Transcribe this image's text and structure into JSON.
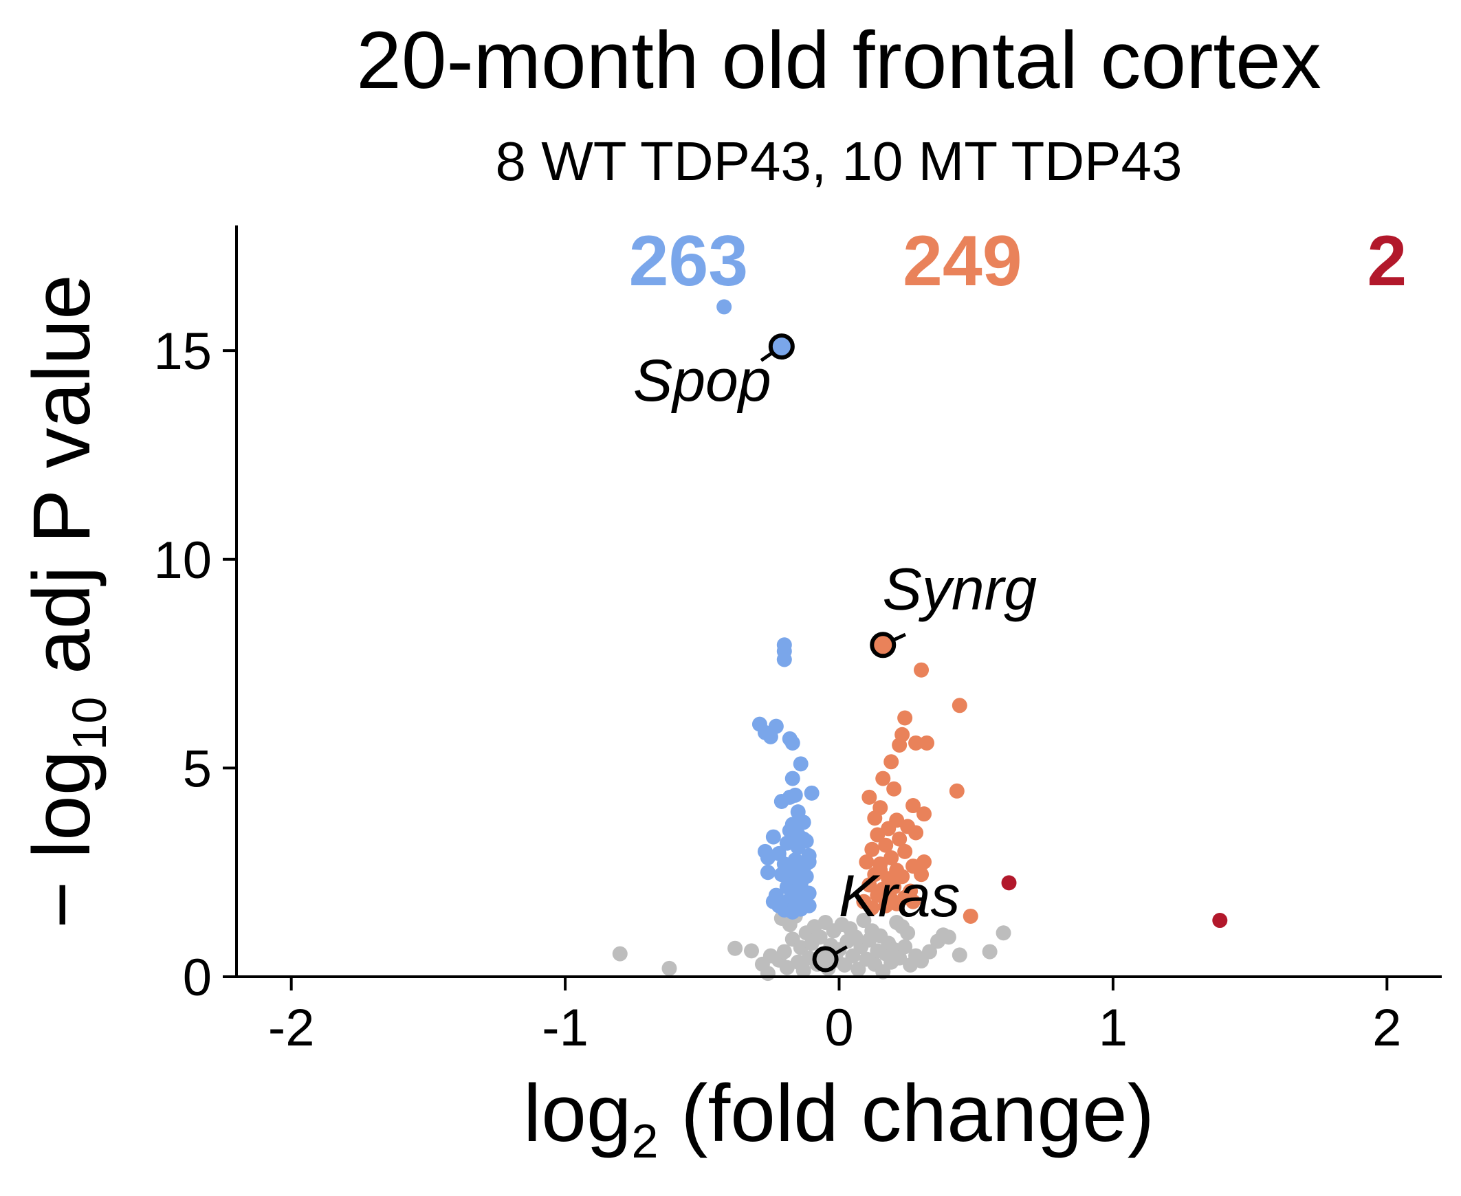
{
  "chart_data": {
    "type": "scatter",
    "title": "20-month old frontal cortex",
    "subtitle": "8 WT TDP43, 10 MT TDP43",
    "xlabel_main": "log",
    "xlabel_sub": "2",
    "xlabel_rest": " (fold change)",
    "ylabel_prefix": "− log",
    "ylabel_sub": "10",
    "ylabel_rest": " adj P value",
    "xlim": [
      -2.2,
      2.2
    ],
    "ylim": [
      0,
      18
    ],
    "x_ticks": [
      -2,
      -1,
      0,
      1,
      2
    ],
    "x_tick_labels": [
      "-2",
      "-1",
      "0",
      "1",
      "2"
    ],
    "y_ticks": [
      0,
      5,
      10,
      15
    ],
    "y_tick_labels": [
      "0",
      "5",
      "10",
      "15"
    ],
    "grid": false,
    "counts": [
      {
        "label": "263",
        "x": -0.55,
        "color": "#7aa6ea"
      },
      {
        "label": "249",
        "x": 0.45,
        "color": "#e9825a"
      },
      {
        "label": "2",
        "x": 2.0,
        "color": "#b2182b"
      }
    ],
    "colors": {
      "down": "#7aa6ea",
      "up": "#e9825a",
      "strong_up": "#b2182b",
      "ns": "#bdbdbd"
    },
    "series": [
      {
        "group": "ns",
        "points": [
          [
            -0.8,
            0.55
          ],
          [
            -0.62,
            0.2
          ],
          [
            -0.38,
            0.68
          ],
          [
            -0.32,
            0.62
          ],
          [
            -0.28,
            0.3
          ],
          [
            -0.26,
            0.08
          ],
          [
            -0.25,
            0.5
          ],
          [
            -0.22,
            0.4
          ],
          [
            -0.2,
            0.6
          ],
          [
            -0.19,
            0.22
          ],
          [
            -0.17,
            0.9
          ],
          [
            -0.15,
            0.35
          ],
          [
            -0.14,
            0.7
          ],
          [
            -0.13,
            0.15
          ],
          [
            -0.12,
            1.05
          ],
          [
            -0.11,
            0.45
          ],
          [
            -0.1,
            0.8
          ],
          [
            -0.09,
            1.2
          ],
          [
            -0.08,
            0.3
          ],
          [
            -0.07,
            0.95
          ],
          [
            -0.06,
            0.55
          ],
          [
            -0.05,
            1.3
          ],
          [
            -0.04,
            0.2
          ],
          [
            -0.03,
            0.75
          ],
          [
            -0.02,
            1.1
          ],
          [
            -0.01,
            0.4
          ],
          [
            0.0,
            0.65
          ],
          [
            0.01,
            1.25
          ],
          [
            0.02,
            0.28
          ],
          [
            0.03,
            0.85
          ],
          [
            0.04,
            1.15
          ],
          [
            0.05,
            0.5
          ],
          [
            0.06,
            0.95
          ],
          [
            0.07,
            0.18
          ],
          [
            0.08,
            0.72
          ],
          [
            0.09,
            1.35
          ],
          [
            0.1,
            0.42
          ],
          [
            0.11,
            0.88
          ],
          [
            0.12,
            1.1
          ],
          [
            0.13,
            0.3
          ],
          [
            0.14,
            0.62
          ],
          [
            0.15,
            0.98
          ],
          [
            0.16,
            0.12
          ],
          [
            0.17,
            0.55
          ],
          [
            0.18,
            0.8
          ],
          [
            0.19,
            0.35
          ],
          [
            0.2,
            0.65
          ],
          [
            0.22,
            0.45
          ],
          [
            0.24,
            0.72
          ],
          [
            0.26,
            0.28
          ],
          [
            0.28,
            0.5
          ],
          [
            0.3,
            0.38
          ],
          [
            0.33,
            0.6
          ],
          [
            0.36,
            0.85
          ],
          [
            0.38,
            1.0
          ],
          [
            0.4,
            0.95
          ],
          [
            0.44,
            0.52
          ],
          [
            0.55,
            0.6
          ],
          [
            0.6,
            1.05
          ],
          [
            -0.21,
            1.4
          ],
          [
            -0.18,
            1.25
          ],
          [
            -0.16,
            1.45
          ],
          [
            0.21,
            1.3
          ],
          [
            0.23,
            1.2
          ],
          [
            0.25,
            1.05
          ]
        ]
      },
      {
        "group": "down",
        "points": [
          [
            -0.42,
            16.05
          ],
          [
            -0.22,
            15.05
          ],
          [
            -0.2,
            7.95
          ],
          [
            -0.2,
            7.8
          ],
          [
            -0.2,
            7.6
          ],
          [
            -0.29,
            6.05
          ],
          [
            -0.27,
            5.85
          ],
          [
            -0.25,
            5.75
          ],
          [
            -0.23,
            6.0
          ],
          [
            -0.18,
            5.7
          ],
          [
            -0.17,
            5.6
          ],
          [
            -0.14,
            5.1
          ],
          [
            -0.17,
            4.75
          ],
          [
            -0.1,
            4.4
          ],
          [
            -0.18,
            4.3
          ],
          [
            -0.21,
            4.2
          ],
          [
            -0.16,
            4.35
          ],
          [
            -0.15,
            3.95
          ],
          [
            -0.13,
            3.7
          ],
          [
            -0.18,
            3.5
          ],
          [
            -0.24,
            3.35
          ],
          [
            -0.19,
            3.2
          ],
          [
            -0.15,
            3.1
          ],
          [
            -0.12,
            3.25
          ],
          [
            -0.27,
            3.0
          ],
          [
            -0.26,
            2.85
          ],
          [
            -0.22,
            2.95
          ],
          [
            -0.2,
            2.7
          ],
          [
            -0.16,
            2.8
          ],
          [
            -0.13,
            2.6
          ],
          [
            -0.11,
            2.75
          ],
          [
            -0.26,
            2.5
          ],
          [
            -0.21,
            2.45
          ],
          [
            -0.18,
            2.35
          ],
          [
            -0.15,
            2.5
          ],
          [
            -0.12,
            2.4
          ],
          [
            -0.19,
            2.15
          ],
          [
            -0.16,
            2.05
          ],
          [
            -0.14,
            2.2
          ],
          [
            -0.11,
            2.0
          ],
          [
            -0.23,
            1.95
          ],
          [
            -0.18,
            1.85
          ],
          [
            -0.15,
            1.75
          ],
          [
            -0.13,
            1.9
          ],
          [
            -0.11,
            1.7
          ],
          [
            -0.22,
            1.7
          ],
          [
            -0.2,
            1.6
          ],
          [
            -0.17,
            1.55
          ],
          [
            -0.14,
            1.62
          ],
          [
            -0.24,
            1.8
          ],
          [
            -0.15,
            3.4
          ],
          [
            -0.17,
            3.65
          ],
          [
            -0.13,
            3.3
          ],
          [
            -0.11,
            2.9
          ],
          [
            -0.19,
            2.55
          ]
        ]
      },
      {
        "group": "up",
        "points": [
          [
            0.16,
            7.95
          ],
          [
            0.3,
            7.35
          ],
          [
            0.44,
            6.5
          ],
          [
            0.24,
            6.2
          ],
          [
            0.23,
            5.8
          ],
          [
            0.32,
            5.6
          ],
          [
            0.28,
            5.6
          ],
          [
            0.22,
            5.55
          ],
          [
            0.19,
            5.15
          ],
          [
            0.16,
            4.75
          ],
          [
            0.43,
            4.45
          ],
          [
            0.2,
            4.5
          ],
          [
            0.11,
            4.3
          ],
          [
            0.27,
            4.1
          ],
          [
            0.31,
            3.9
          ],
          [
            0.15,
            4.05
          ],
          [
            0.13,
            3.8
          ],
          [
            0.21,
            3.75
          ],
          [
            0.18,
            3.55
          ],
          [
            0.25,
            3.6
          ],
          [
            0.14,
            3.4
          ],
          [
            0.22,
            3.3
          ],
          [
            0.28,
            3.45
          ],
          [
            0.17,
            3.15
          ],
          [
            0.12,
            3.05
          ],
          [
            0.24,
            3.0
          ],
          [
            0.19,
            2.85
          ],
          [
            0.1,
            2.75
          ],
          [
            0.15,
            2.7
          ],
          [
            0.21,
            2.55
          ],
          [
            0.27,
            2.65
          ],
          [
            0.31,
            2.75
          ],
          [
            0.13,
            2.45
          ],
          [
            0.18,
            2.35
          ],
          [
            0.23,
            2.4
          ],
          [
            0.3,
            2.45
          ],
          [
            0.11,
            2.2
          ],
          [
            0.16,
            2.1
          ],
          [
            0.2,
            2.15
          ],
          [
            0.26,
            2.05
          ],
          [
            0.14,
            1.95
          ],
          [
            0.19,
            1.85
          ],
          [
            0.24,
            1.9
          ],
          [
            0.09,
            1.8
          ],
          [
            0.48,
            1.45
          ],
          [
            0.17,
            1.7
          ],
          [
            0.21,
            1.75
          ],
          [
            0.12,
            1.65
          ],
          [
            0.27,
            1.8
          ],
          [
            0.15,
            2.55
          ]
        ]
      },
      {
        "group": "strong_up",
        "points": [
          [
            0.62,
            2.25
          ],
          [
            1.39,
            1.35
          ]
        ]
      }
    ],
    "highlighted": [
      {
        "gene": "Spop",
        "x": -0.21,
        "y": 15.1,
        "group": "down",
        "label_x": -0.5,
        "label_y": 13.8
      },
      {
        "gene": "Synrg",
        "x": 0.16,
        "y": 7.95,
        "group": "up",
        "label_x": 0.44,
        "label_y": 8.8
      },
      {
        "gene": "Kras",
        "x": -0.05,
        "y": 0.42,
        "group": "ns",
        "label_x": 0.22,
        "label_y": 1.45
      }
    ]
  }
}
